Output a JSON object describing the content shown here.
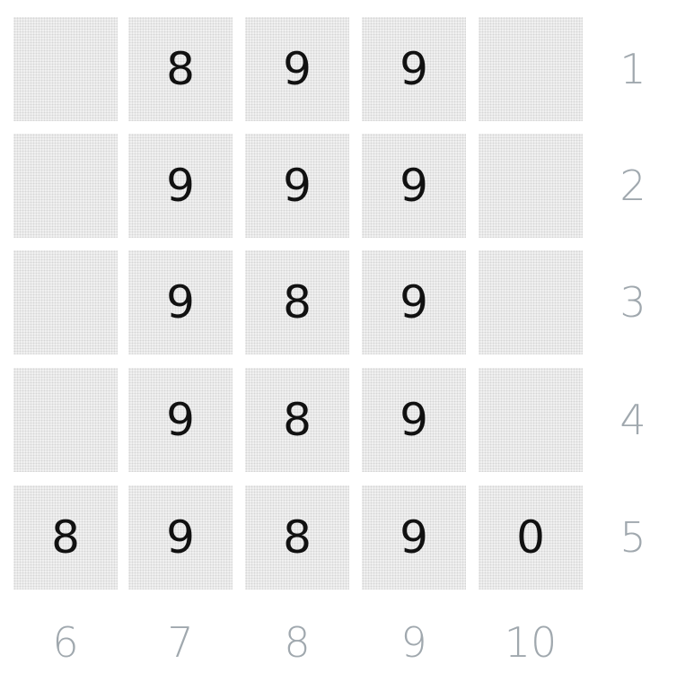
{
  "grid": {
    "rows": [
      [
        "",
        "8",
        "9",
        "9",
        ""
      ],
      [
        "",
        "9",
        "9",
        "9",
        ""
      ],
      [
        "",
        "9",
        "8",
        "9",
        ""
      ],
      [
        "",
        "9",
        "8",
        "9",
        ""
      ],
      [
        "8",
        "9",
        "8",
        "9",
        "0"
      ]
    ],
    "row_labels": [
      "1",
      "2",
      "3",
      "4",
      "5"
    ],
    "column_labels": [
      "6",
      "7",
      "8",
      "9",
      "10"
    ]
  },
  "colors": {
    "cell_background": "#f3f3f3",
    "digit": "#111111",
    "label": "#a0a8ae"
  }
}
